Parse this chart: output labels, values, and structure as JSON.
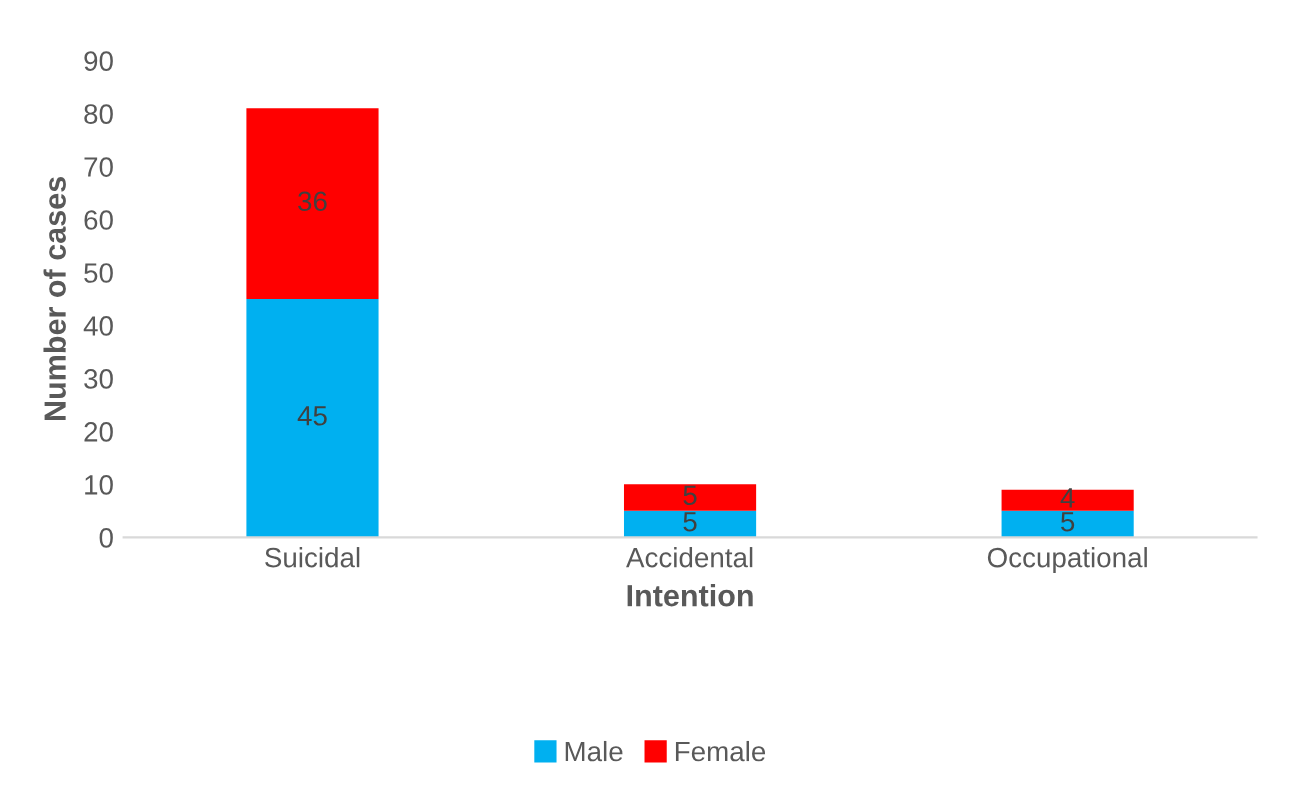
{
  "chart_data": {
    "type": "bar",
    "stacked": true,
    "xlabel": "Intention",
    "ylabel": "Number of cases",
    "categories": [
      "Suicidal",
      "Accidental",
      "Occupational"
    ],
    "series": [
      {
        "name": "Male",
        "color": "#00b0f0",
        "values": [
          45,
          5,
          5
        ]
      },
      {
        "name": "Female",
        "color": "#ff0000",
        "values": [
          36,
          5,
          4
        ]
      }
    ],
    "ylim": [
      0,
      90
    ],
    "yticks": [
      0,
      10,
      20,
      30,
      40,
      50,
      60,
      70,
      80,
      90
    ],
    "grid": false,
    "legend": "bottom",
    "data_labels": true
  }
}
